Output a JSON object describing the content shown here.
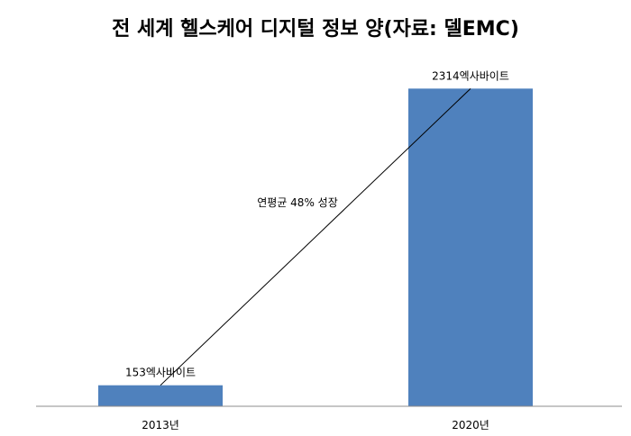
{
  "chart_data": {
    "type": "bar",
    "title": "전 세계 헬스케어 디지털 정보 양(자료: 델EMC)",
    "categories": [
      "2013년",
      "2020년"
    ],
    "values": [
      153,
      2314
    ],
    "data_labels": [
      "153엑사바이트",
      "2314엑사바이트"
    ],
    "xlabel": "",
    "ylabel": "",
    "ylim": [
      0,
      2500
    ],
    "grid": false,
    "legend": "none",
    "bar_color": "#4F81BD",
    "annotation": {
      "text": "연평균 48% 성장",
      "from_category": "2013년",
      "to_category": "2020년"
    }
  }
}
